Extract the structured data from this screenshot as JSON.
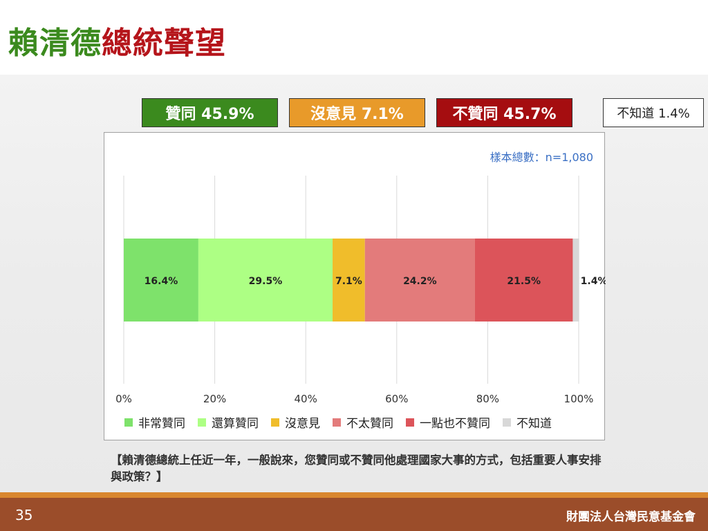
{
  "title": {
    "part1": "賴清德",
    "part2": "總統聲望"
  },
  "summary": {
    "agree": "贊同 45.9%",
    "neutral": "沒意見 7.1%",
    "disagree": "不贊同 45.7%",
    "unknown": "不知道 1.4%"
  },
  "sample_text": "樣本總數：n=1,080",
  "chart_data": {
    "type": "bar",
    "orientation": "horizontal-stacked-100",
    "xlim": [
      0,
      100
    ],
    "ticks": [
      "0%",
      "20%",
      "40%",
      "60%",
      "80%",
      "100%"
    ],
    "grid": true,
    "legend_position": "bottom",
    "series": [
      {
        "name": "非常贊同",
        "value": 16.4,
        "label": "16.4%",
        "color": "#7ee26b"
      },
      {
        "name": "還算贊同",
        "value": 29.5,
        "label": "29.5%",
        "color": "#adff84"
      },
      {
        "name": "沒意見",
        "value": 7.1,
        "label": "7.1%",
        "color": "#f0bd2b"
      },
      {
        "name": "不太贊同",
        "value": 24.2,
        "label": "24.2%",
        "color": "#e37b7b"
      },
      {
        "name": "一點也不贊同",
        "value": 21.5,
        "label": "21.5%",
        "color": "#dc545a"
      },
      {
        "name": "不知道",
        "value": 1.4,
        "label": "1.4%",
        "color": "#d8d8d8"
      }
    ]
  },
  "question": "【賴清德總統上任近一年，一般說來，您贊同或不贊同他處理國家大事的方式，包括重要人事安排與政策？】",
  "footer": {
    "page": "35",
    "org": "財團法人台灣民意基金會"
  },
  "colors": {
    "agree": "#3b8a1e",
    "neutral": "#e89a2a",
    "disagree": "#a50d10",
    "footer": "#9b4d2a",
    "footer_accent": "#d9862e"
  }
}
